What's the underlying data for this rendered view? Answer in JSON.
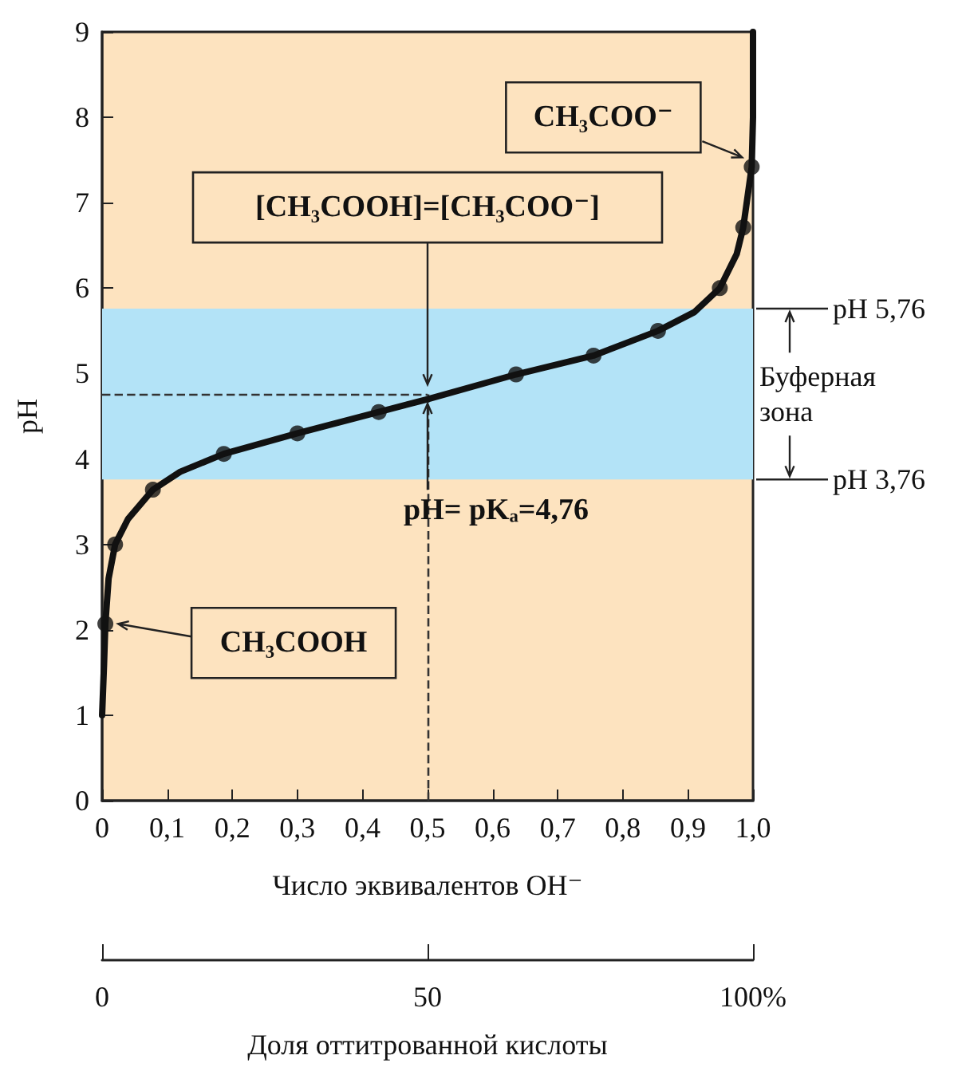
{
  "chart_data": {
    "type": "line",
    "xlabel": "Число эквивалентов OH⁻",
    "ylabel": "pH",
    "x2label": "Доля оттитрованной кислоты",
    "xlim": [
      0,
      1
    ],
    "xticks": [
      0,
      {
        "value": 0.1,
        "label": "0,1"
      },
      {
        "value": 0.2,
        "label": "0,2"
      },
      {
        "value": 0.3,
        "label": "0,3"
      },
      {
        "value": 0.4,
        "label": "0,4"
      },
      {
        "value": 0.5,
        "label": "0,5"
      },
      {
        "value": 0.6,
        "label": "0,6"
      },
      {
        "value": 0.7,
        "label": "0,7"
      },
      {
        "value": 0.8,
        "label": "0,8"
      },
      {
        "value": 0.9,
        "label": "0,9"
      },
      {
        "value": 1,
        "label": "1,0"
      }
    ],
    "ylim": [
      0,
      9
    ],
    "yticks": [
      0,
      1,
      2,
      3,
      4,
      5,
      6,
      7,
      8,
      9
    ],
    "x2lim": [
      0,
      100
    ],
    "x2ticks": [
      0,
      50,
      {
        "value": 100,
        "label": "100%"
      }
    ],
    "grid": false,
    "series": [
      {
        "color": "#111111",
        "marker": "none",
        "x": [
          0,
          0.003,
          0.005,
          0.01,
          0.02,
          0.04,
          0.078,
          0.12,
          0.187,
          0.3,
          0.425,
          0.5,
          0.636,
          0.755,
          0.854,
          0.91,
          0.949,
          0.975,
          0.985,
          0.998,
          1,
          1
        ],
        "values": [
          1,
          1.6,
          2.07,
          2.6,
          3,
          3.3,
          3.64,
          3.85,
          4.06,
          4.3,
          4.55,
          4.7,
          4.99,
          5.21,
          5.5,
          5.72,
          6,
          6.4,
          6.71,
          7.42,
          8,
          9
        ]
      },
      {
        "type": "scatter",
        "color": "#111111",
        "marker": "circle",
        "x": [
          0.005,
          0.02,
          0.078,
          0.187,
          0.3,
          0.425,
          0.636,
          0.755,
          0.854,
          0.949,
          0.985,
          0.998
        ],
        "values": [
          2.07,
          3,
          3.64,
          4.06,
          4.3,
          4.55,
          4.99,
          5.21,
          5.5,
          6,
          6.71,
          7.42
        ]
      }
    ],
    "bands": [
      {
        "axis": "y",
        "from": 3.76,
        "to": 5.76,
        "label": "Буферная зона",
        "color": "#b3e3f7"
      }
    ],
    "ref_lines": [
      {
        "axis": "y",
        "value": 4.76,
        "line_style": "dashed"
      },
      {
        "axis": "x",
        "value": 0.5,
        "line_style": "dashed"
      },
      {
        "axis": "y",
        "value": 5.76,
        "label": "pH 5,76",
        "line_style": "solid"
      },
      {
        "axis": "y",
        "value": 3.76,
        "label": "pH 3,76",
        "line_style": "solid"
      }
    ],
    "annotations": [
      {
        "text": "CH₃COO⁻",
        "x": 0.998,
        "y": 7.42
      },
      {
        "text": "[CH₃COOH]=[CH₃COO⁻]",
        "x": 0.5,
        "y": 4.76
      },
      {
        "text": "CH₃COOH",
        "x": 0.005,
        "y": 2.07
      },
      {
        "text": "pH= pKₐ=4,76",
        "x": 0.5,
        "y": 4.76
      }
    ]
  }
}
